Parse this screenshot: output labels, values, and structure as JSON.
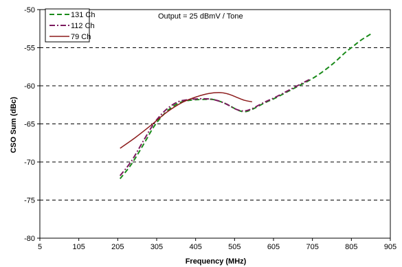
{
  "chart_data": {
    "type": "line",
    "title": "",
    "xlabel": "Frequency (MHz)",
    "ylabel": "CSO Sum (dBc)",
    "annotation": "Output = 25 dBmV / Tone",
    "xlim": [
      5,
      905
    ],
    "ylim": [
      -80,
      -50
    ],
    "xticks": [
      5,
      105,
      205,
      305,
      405,
      505,
      605,
      705,
      805,
      905
    ],
    "yticks": [
      -80,
      -75,
      -70,
      -65,
      -60,
      -55,
      -50
    ],
    "grid": "horizontal dashed",
    "legend_position": "top-left",
    "series": [
      {
        "name": "131 Ch",
        "color": "#1a8a1a",
        "style": "dashed",
        "x": [
          211,
          240,
          270,
          300,
          330,
          360,
          390,
          420,
          450,
          480,
          510,
          530,
          550,
          580,
          610,
          640,
          670,
          700,
          730,
          760,
          790,
          810,
          830,
          855
        ],
        "y": [
          -72.2,
          -70.3,
          -67.8,
          -65.2,
          -63.4,
          -62.3,
          -61.9,
          -61.8,
          -61.8,
          -62.3,
          -63.1,
          -63.4,
          -63.1,
          -62.3,
          -61.6,
          -60.8,
          -60.0,
          -59.2,
          -58.2,
          -57.0,
          -55.6,
          -54.8,
          -54.0,
          -53.2
        ]
      },
      {
        "name": "112 Ch",
        "color": "#7b1a5e",
        "style": "dashdot",
        "x": [
          211,
          240,
          270,
          300,
          330,
          360,
          390,
          420,
          450,
          480,
          510,
          530,
          550,
          580,
          610,
          640,
          670,
          700
        ],
        "y": [
          -71.8,
          -69.9,
          -67.3,
          -64.8,
          -63.1,
          -62.1,
          -61.8,
          -61.7,
          -61.8,
          -62.3,
          -63.1,
          -63.3,
          -63.0,
          -62.2,
          -61.5,
          -60.7,
          -59.9,
          -59.1
        ]
      },
      {
        "name": "79 Ch",
        "color": "#8b1a1a",
        "style": "solid",
        "x": [
          211,
          250,
          290,
          330,
          370,
          410,
          440,
          470,
          490,
          510,
          530,
          550
        ],
        "y": [
          -68.2,
          -66.8,
          -65.2,
          -63.5,
          -62.2,
          -61.4,
          -61.0,
          -60.9,
          -61.1,
          -61.5,
          -61.9,
          -62.1
        ]
      }
    ]
  }
}
